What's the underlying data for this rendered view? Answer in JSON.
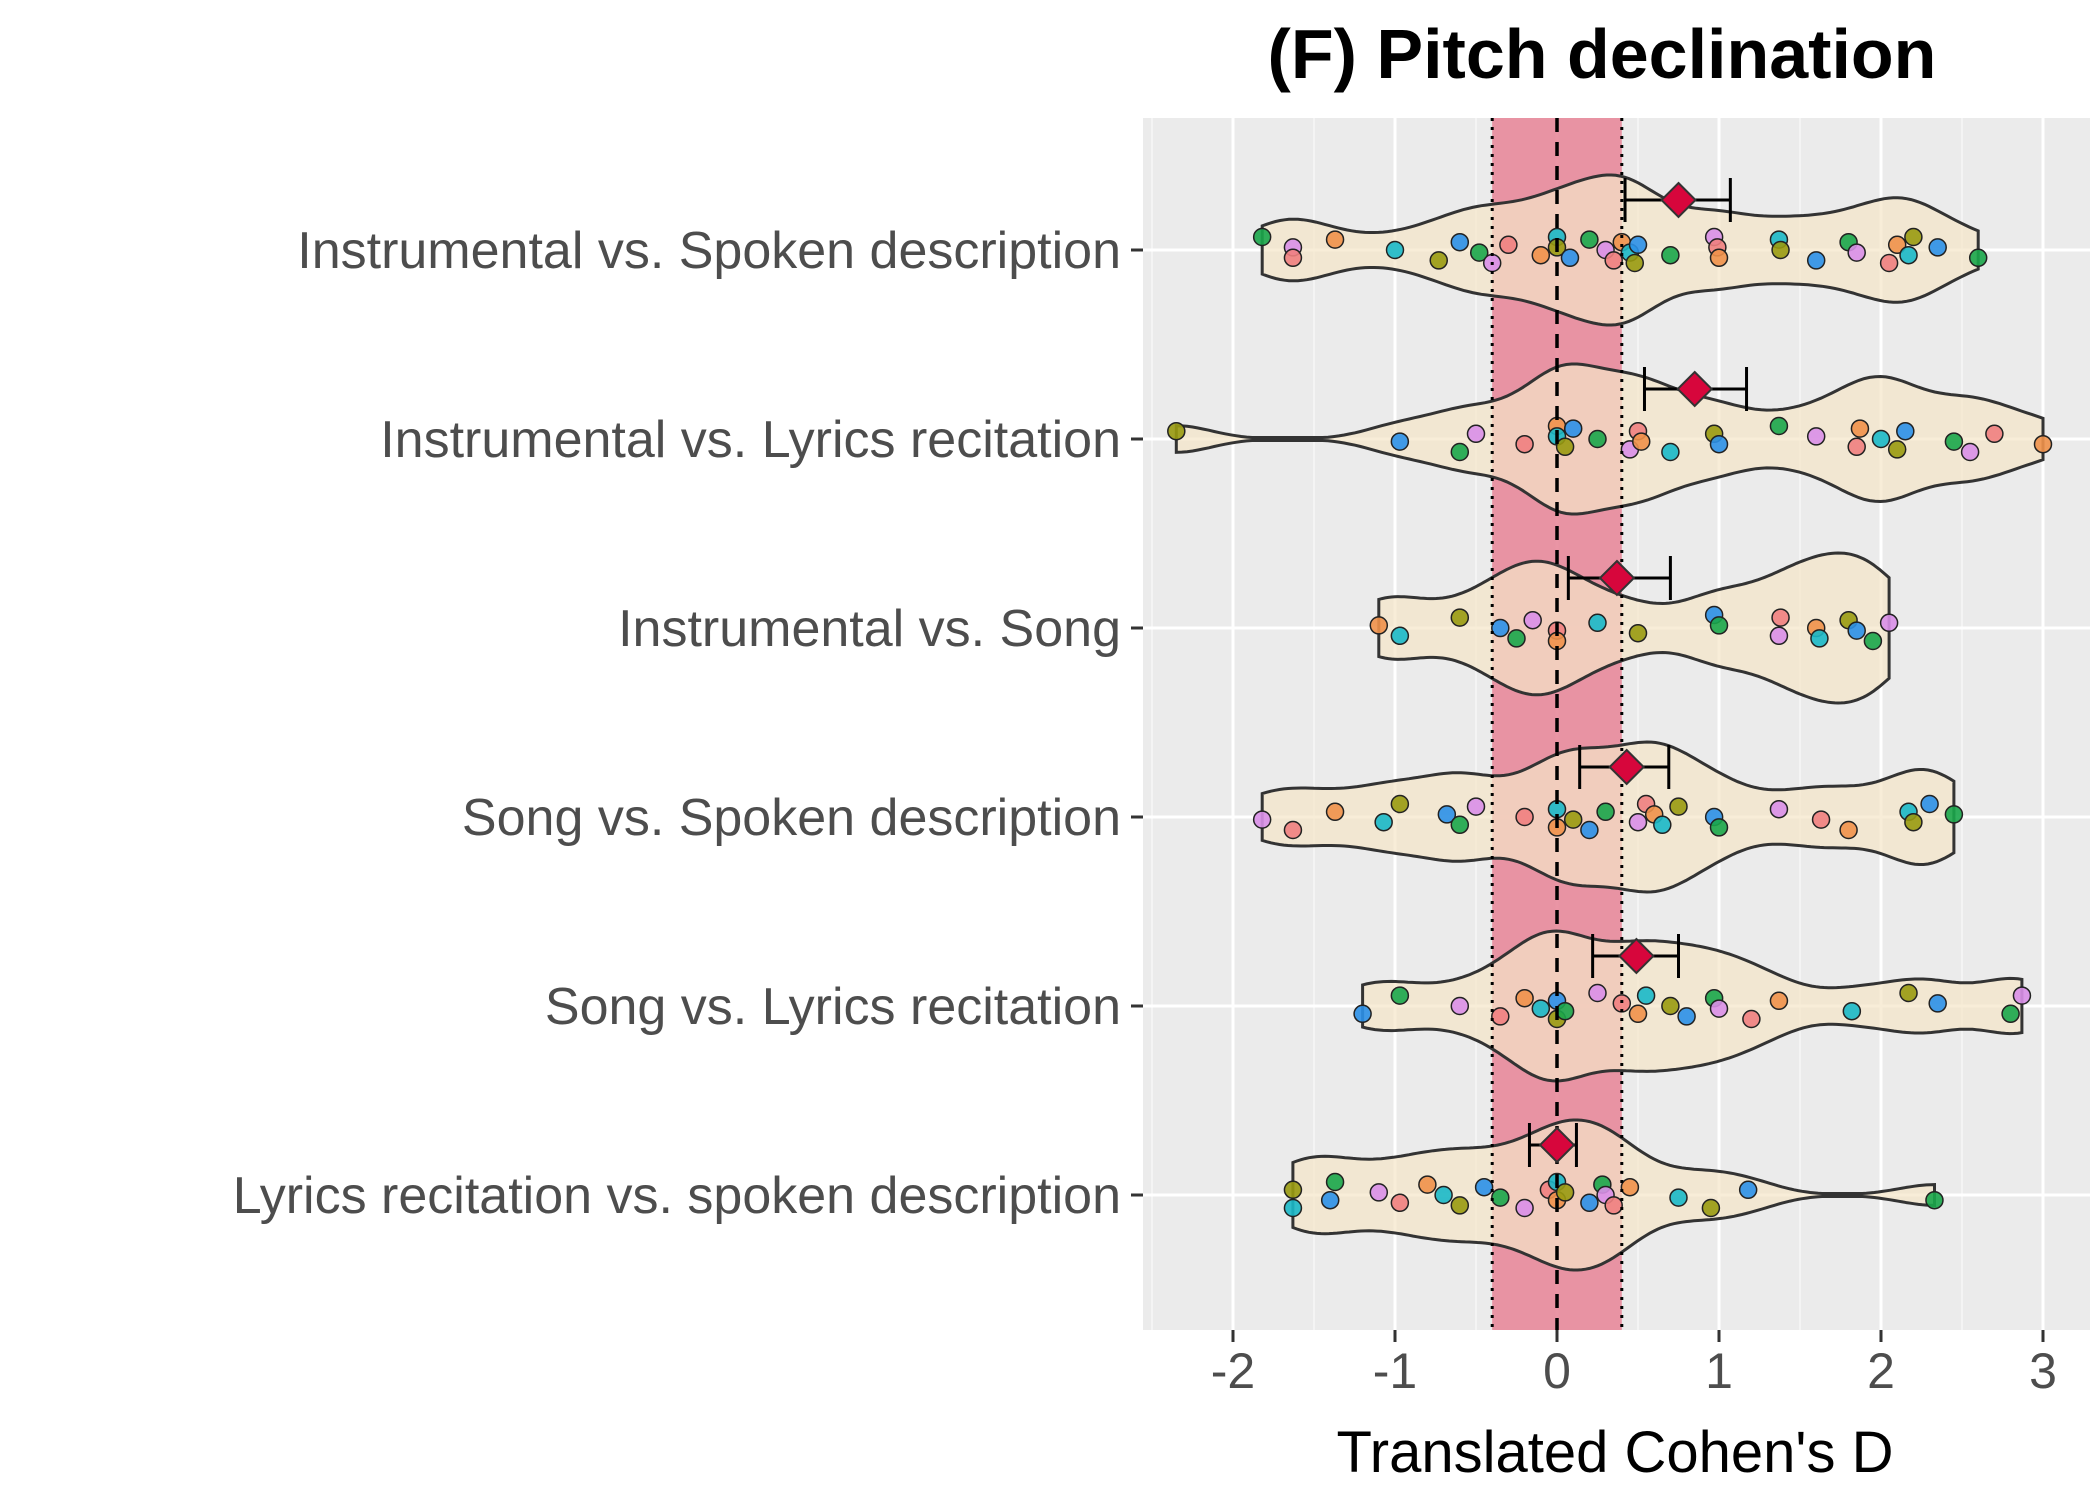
{
  "chart_data": {
    "type": "violin",
    "title": "(F) Pitch declination",
    "xlabel": "Translated Cohen's D",
    "ylabel": "",
    "xlim": [
      -2.6,
      3.3
    ],
    "xticks": [
      -2,
      -1,
      0,
      1,
      2,
      3
    ],
    "xtick_labels": [
      "-2",
      "-1",
      "0",
      "1",
      "2",
      "3"
    ],
    "grid": true,
    "reference_band": {
      "lower": -0.4,
      "upper": 0.4,
      "fill": "#e8899b"
    },
    "reference_line": 0,
    "point_colors": [
      "#1aa64a",
      "#999a10",
      "#f0914a",
      "#d98fe8",
      "#2b90e8",
      "#19b8c8",
      "#f08080"
    ],
    "violin_fill": "#f5e6c8",
    "mean_marker_color": "#d7063c",
    "categories": [
      "Instrumental vs. Spoken description",
      "Instrumental vs. Lyrics recitation",
      "Instrumental vs. Song",
      "Song vs. Spoken description",
      "Song vs. Lyrics recitation",
      "Lyrics recitation vs. spoken description"
    ],
    "series": [
      {
        "category": "Instrumental vs. Spoken description",
        "mean": 0.75,
        "ci": [
          0.42,
          1.07
        ],
        "points": [
          -1.82,
          -1.63,
          -1.63,
          -1.37,
          -1.0,
          -0.73,
          -0.6,
          -0.48,
          -0.4,
          -0.3,
          -0.1,
          0.0,
          0.0,
          0.08,
          0.2,
          0.3,
          0.35,
          0.4,
          0.45,
          0.48,
          0.5,
          0.7,
          0.97,
          0.99,
          1.0,
          1.37,
          1.38,
          1.6,
          1.8,
          1.85,
          2.05,
          2.1,
          2.17,
          2.2,
          2.35,
          2.6
        ]
      },
      {
        "category": "Instrumental vs. Lyrics recitation",
        "mean": 0.85,
        "ci": [
          0.54,
          1.17
        ],
        "points": [
          -2.35,
          -0.97,
          -0.6,
          -0.5,
          -0.2,
          0.0,
          0.0,
          0.05,
          0.1,
          0.25,
          0.45,
          0.5,
          0.52,
          0.7,
          0.97,
          1.0,
          1.37,
          1.6,
          1.85,
          1.87,
          2.0,
          2.1,
          2.15,
          2.45,
          2.55,
          2.7,
          3.0
        ]
      },
      {
        "category": "Instrumental vs. Song",
        "mean": 0.37,
        "ci": [
          0.07,
          0.7
        ],
        "points": [
          -1.1,
          -0.97,
          -0.6,
          -0.35,
          -0.25,
          -0.15,
          0.0,
          0.0,
          0.25,
          0.5,
          0.97,
          1.0,
          1.37,
          1.38,
          1.6,
          1.62,
          1.8,
          1.85,
          1.95,
          2.05
        ]
      },
      {
        "category": "Song vs. Spoken description",
        "mean": 0.43,
        "ci": [
          0.14,
          0.69
        ],
        "points": [
          -1.82,
          -1.63,
          -1.37,
          -1.07,
          -0.97,
          -0.68,
          -0.6,
          -0.5,
          -0.2,
          0.0,
          0.0,
          0.1,
          0.2,
          0.3,
          0.5,
          0.55,
          0.6,
          0.65,
          0.75,
          0.97,
          1.0,
          1.37,
          1.63,
          1.8,
          2.17,
          2.2,
          2.3,
          2.45
        ]
      },
      {
        "category": "Song vs. Lyrics recitation",
        "mean": 0.49,
        "ci": [
          0.22,
          0.75
        ],
        "points": [
          -1.2,
          -0.97,
          -0.6,
          -0.35,
          -0.2,
          -0.1,
          0.0,
          0.0,
          0.05,
          0.25,
          0.4,
          0.5,
          0.55,
          0.7,
          0.8,
          0.97,
          1.0,
          1.2,
          1.37,
          1.82,
          2.17,
          2.35,
          2.8,
          2.87
        ]
      },
      {
        "category": "Lyrics recitation vs. spoken description",
        "mean": 0.0,
        "ci": [
          -0.17,
          0.12
        ],
        "points": [
          -1.63,
          -1.63,
          -1.4,
          -1.37,
          -1.1,
          -0.97,
          -0.8,
          -0.7,
          -0.6,
          -0.45,
          -0.35,
          -0.2,
          -0.05,
          0.0,
          0.0,
          0.05,
          0.2,
          0.28,
          0.3,
          0.35,
          0.45,
          0.75,
          0.95,
          1.18,
          2.33
        ]
      }
    ]
  }
}
